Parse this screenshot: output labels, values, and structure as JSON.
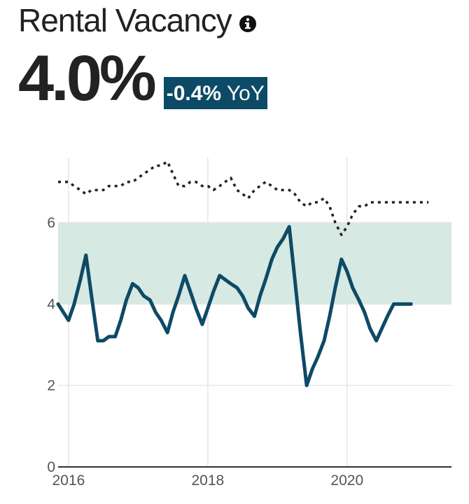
{
  "header": {
    "title": "Rental Vacancy",
    "info_icon": "info-icon",
    "value": "4.0%",
    "yoy_delta": "-0.4%",
    "yoy_suffix": "YoY"
  },
  "colors": {
    "main_line": "#0d4a66",
    "comparison_line": "#222222",
    "band": "#d6e9e2",
    "badge": "#0d4a66"
  },
  "chart_data": {
    "type": "line",
    "title": "",
    "xlabel": "",
    "ylabel": "",
    "xlim": [
      2015.85,
      2021.5
    ],
    "ylim": [
      0,
      7.6
    ],
    "y_ticks": [
      0,
      2,
      4,
      6
    ],
    "x_ticks": [
      2016,
      2018,
      2020
    ],
    "grid": true,
    "band": [
      4,
      6
    ],
    "series": [
      {
        "style": "solid",
        "x": [
          2015.85,
          2016.0,
          2016.08,
          2016.17,
          2016.25,
          2016.33,
          2016.42,
          2016.5,
          2016.58,
          2016.67,
          2016.75,
          2016.83,
          2016.92,
          2017.0,
          2017.08,
          2017.17,
          2017.25,
          2017.33,
          2017.42,
          2017.5,
          2017.58,
          2017.67,
          2017.75,
          2017.83,
          2017.92,
          2018.0,
          2018.08,
          2018.17,
          2018.25,
          2018.33,
          2018.42,
          2018.5,
          2018.58,
          2018.67,
          2018.75,
          2018.83,
          2018.92,
          2019.0,
          2019.08,
          2019.17,
          2019.25,
          2019.33,
          2019.42,
          2019.5,
          2019.58,
          2019.67,
          2019.75,
          2019.83,
          2019.92,
          2020.0,
          2020.08,
          2020.17,
          2020.25,
          2020.33,
          2020.42,
          2020.5,
          2020.58,
          2020.67,
          2020.75,
          2020.83,
          2020.92
        ],
        "y": [
          4.0,
          3.6,
          4.0,
          4.6,
          5.2,
          4.2,
          3.1,
          3.1,
          3.2,
          3.2,
          3.6,
          4.1,
          4.5,
          4.4,
          4.2,
          4.1,
          3.8,
          3.6,
          3.3,
          3.8,
          4.2,
          4.7,
          4.3,
          3.9,
          3.5,
          3.9,
          4.3,
          4.7,
          4.6,
          4.5,
          4.4,
          4.2,
          3.9,
          3.7,
          4.2,
          4.6,
          5.1,
          5.4,
          5.6,
          5.9,
          4.6,
          3.3,
          2.0,
          2.4,
          2.7,
          3.1,
          3.7,
          4.4,
          5.1,
          4.8,
          4.4,
          4.1,
          3.8,
          3.4,
          3.1,
          3.4,
          3.7,
          4.0,
          4.0,
          4.0,
          4.0
        ]
      },
      {
        "style": "dotted",
        "x": [
          2015.85,
          2016.0,
          2016.08,
          2016.17,
          2016.25,
          2016.33,
          2016.42,
          2016.5,
          2016.58,
          2016.67,
          2016.75,
          2016.83,
          2016.92,
          2017.0,
          2017.08,
          2017.17,
          2017.25,
          2017.33,
          2017.42,
          2017.5,
          2017.58,
          2017.67,
          2017.75,
          2017.83,
          2017.92,
          2018.0,
          2018.08,
          2018.17,
          2018.25,
          2018.33,
          2018.42,
          2018.5,
          2018.58,
          2018.67,
          2018.75,
          2018.83,
          2018.92,
          2019.0,
          2019.08,
          2019.17,
          2019.25,
          2019.33,
          2019.42,
          2019.5,
          2019.58,
          2019.67,
          2019.75,
          2019.83,
          2019.92,
          2020.0,
          2020.08,
          2020.17,
          2020.25,
          2020.33,
          2020.42,
          2020.5,
          2020.58,
          2020.67,
          2020.75,
          2020.83,
          2020.92,
          2021.0,
          2021.08,
          2021.17
        ],
        "y": [
          7.0,
          7.0,
          6.9,
          6.8,
          6.7,
          6.8,
          6.8,
          6.8,
          6.9,
          6.9,
          6.9,
          7.0,
          7.0,
          7.1,
          7.2,
          7.3,
          7.4,
          7.4,
          7.5,
          7.2,
          6.9,
          6.9,
          7.0,
          7.0,
          6.9,
          6.9,
          6.8,
          6.9,
          7.0,
          7.1,
          6.8,
          6.7,
          6.6,
          6.8,
          6.9,
          7.0,
          6.9,
          6.8,
          6.8,
          6.8,
          6.7,
          6.5,
          6.4,
          6.5,
          6.5,
          6.6,
          6.4,
          6.0,
          5.7,
          5.9,
          6.2,
          6.4,
          6.4,
          6.5,
          6.5,
          6.5,
          6.5,
          6.5,
          6.5,
          6.5,
          6.5,
          6.5,
          6.5,
          6.5
        ]
      }
    ]
  }
}
